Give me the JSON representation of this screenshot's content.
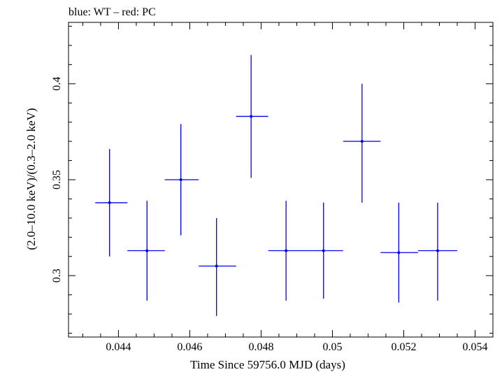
{
  "chart_data": {
    "type": "scatter",
    "title": "blue: WT – red: PC",
    "xlabel": "Time Since 59756.0 MJD (days)",
    "ylabel": "(2.0–10.0 keV)/(0.3–2.0 keV)",
    "xlim": [
      0.0426,
      0.0545
    ],
    "ylim": [
      0.268,
      0.432
    ],
    "x_ticks": [
      0.044,
      0.046,
      0.048,
      0.05,
      0.052,
      0.054
    ],
    "x_tick_labels": [
      "0.044",
      "0.046",
      "0.048",
      "0.05",
      "0.052",
      "0.054"
    ],
    "y_ticks": [
      0.3,
      0.35,
      0.4
    ],
    "y_tick_labels": [
      "0.3",
      "0.35",
      "0.4"
    ],
    "grid": false,
    "colors": {
      "series": "#0000ee",
      "axes": "#000000"
    },
    "series": [
      {
        "points": [
          {
            "x": 0.04375,
            "y": 0.338,
            "xlo": 0.04335,
            "xhi": 0.04425,
            "ylo": 0.31,
            "yhi": 0.366
          },
          {
            "x": 0.0448,
            "y": 0.313,
            "xlo": 0.04425,
            "xhi": 0.0453,
            "ylo": 0.287,
            "yhi": 0.339
          },
          {
            "x": 0.04575,
            "y": 0.35,
            "xlo": 0.0453,
            "xhi": 0.04625,
            "ylo": 0.321,
            "yhi": 0.379
          },
          {
            "x": 0.04675,
            "y": 0.305,
            "xlo": 0.04625,
            "xhi": 0.0473,
            "ylo": 0.279,
            "yhi": 0.33
          },
          {
            "x": 0.04772,
            "y": 0.383,
            "xlo": 0.0473,
            "xhi": 0.0482,
            "ylo": 0.351,
            "yhi": 0.415
          },
          {
            "x": 0.0487,
            "y": 0.313,
            "xlo": 0.0482,
            "xhi": 0.04925,
            "ylo": 0.287,
            "yhi": 0.339
          },
          {
            "x": 0.04975,
            "y": 0.313,
            "xlo": 0.04925,
            "xhi": 0.0503,
            "ylo": 0.288,
            "yhi": 0.338
          },
          {
            "x": 0.05083,
            "y": 0.37,
            "xlo": 0.0503,
            "xhi": 0.05135,
            "ylo": 0.338,
            "yhi": 0.4
          },
          {
            "x": 0.05186,
            "y": 0.312,
            "xlo": 0.05135,
            "xhi": 0.0524,
            "ylo": 0.286,
            "yhi": 0.338
          },
          {
            "x": 0.05295,
            "y": 0.313,
            "xlo": 0.0524,
            "xhi": 0.0535,
            "ylo": 0.287,
            "yhi": 0.338
          }
        ]
      }
    ]
  }
}
